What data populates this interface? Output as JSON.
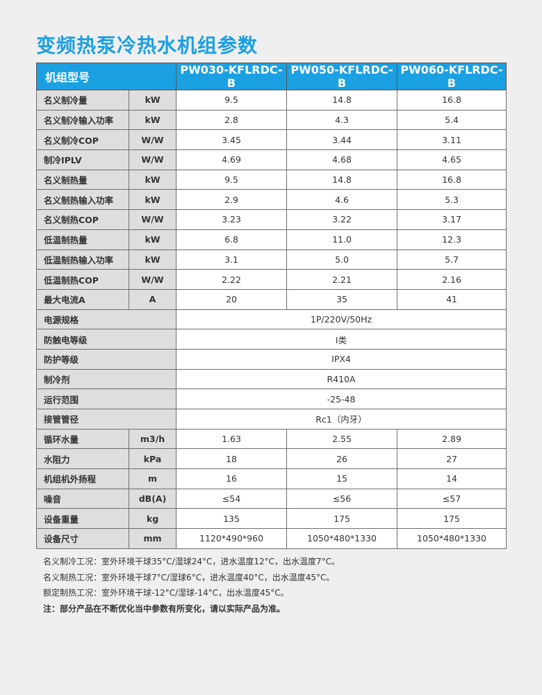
{
  "title": "变频热泵冷热水机组参数",
  "header": {
    "label": "机组型号",
    "models": [
      "PW030-KFLRDC-B",
      "PW050-KFLRDC-B",
      "PW060-KFLRDC-B"
    ]
  },
  "rows": [
    {
      "label": "名义制冷量",
      "unit": "kW",
      "values": [
        "9.5",
        "14.8",
        "16.8"
      ]
    },
    {
      "label": "名义制冷输入功率",
      "unit": "kW",
      "values": [
        "2.8",
        "4.3",
        "5.4"
      ]
    },
    {
      "label": "名义制冷COP",
      "unit": "W/W",
      "values": [
        "3.45",
        "3.44",
        "3.11"
      ]
    },
    {
      "label": "制冷IPLV",
      "unit": "W/W",
      "values": [
        "4.69",
        "4.68",
        "4.65"
      ]
    },
    {
      "label": "名义制热量",
      "unit": "kW",
      "values": [
        "9.5",
        "14.8",
        "16.8"
      ]
    },
    {
      "label": "名义制热输入功率",
      "unit": "kW",
      "values": [
        "2.9",
        "4.6",
        "5.3"
      ]
    },
    {
      "label": "名义制热COP",
      "unit": "W/W",
      "values": [
        "3.23",
        "3.22",
        "3.17"
      ]
    },
    {
      "label": "低温制热量",
      "unit": "kW",
      "values": [
        "6.8",
        "11.0",
        "12.3"
      ]
    },
    {
      "label": "低温制热输入功率",
      "unit": "kW",
      "values": [
        "3.1",
        "5.0",
        "5.7"
      ]
    },
    {
      "label": "低温制热COP",
      "unit": "W/W",
      "values": [
        "2.22",
        "2.21",
        "2.16"
      ]
    },
    {
      "label": "最大电流A",
      "unit": "A",
      "values": [
        "20",
        "35",
        "41"
      ]
    },
    {
      "label": "电源规格",
      "merged": "1P/220V/50Hz"
    },
    {
      "label": "防触电等级",
      "merged": "Ⅰ类"
    },
    {
      "label": "防护等级",
      "merged": "IPX4"
    },
    {
      "label": "制冷剂",
      "merged": "R410A"
    },
    {
      "label": "运行范围",
      "merged": "-25-48"
    },
    {
      "label": "接管管径",
      "merged": "Rc1（内牙）"
    },
    {
      "label": "循环水量",
      "unit": "m3/h",
      "values": [
        "1.63",
        "2.55",
        "2.89"
      ]
    },
    {
      "label": "水阻力",
      "unit": "kPa",
      "values": [
        "18",
        "26",
        "27"
      ]
    },
    {
      "label": "机组机外扬程",
      "unit": "m",
      "values": [
        "16",
        "15",
        "14"
      ]
    },
    {
      "label": "噪音",
      "unit": "dB(A)",
      "values": [
        "≤54",
        "≤56",
        "≤57"
      ]
    },
    {
      "label": "设备重量",
      "unit": "kg",
      "values": [
        "135",
        "175",
        "175"
      ]
    },
    {
      "label": "设备尺寸",
      "unit": "mm",
      "values": [
        "1120*490*960",
        "1050*480*1330",
        "1050*480*1330"
      ]
    }
  ],
  "notes": [
    "名义制冷工况：室外环境干球35°C/湿球24°C，进水温度12°C，出水温度7°C。",
    "名义制热工况：室外环境干球7°C/湿球6°C，进水温度40°C，出水温度45°C。",
    "额定制热工况：室外环境干球-12°C/湿球-14°C，出水温度45°C。"
  ],
  "disclaimer": "注：部分产品在不断优化当中参数有所变化，请以实际产品为准。",
  "colors": {
    "accent": "#1ba0e2",
    "label_bg": "#dedede",
    "page_bg": "#efefef"
  }
}
